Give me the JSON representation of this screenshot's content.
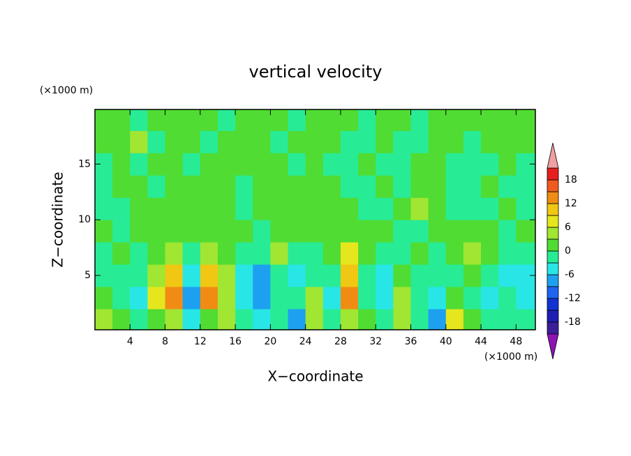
{
  "chart_data": {
    "type": "contour",
    "title": "vertical velocity",
    "x_label": "X−coordinate",
    "y_label": "Z−coordinate",
    "x_units": "(×1000 m)",
    "y_units": "(×1000 m)",
    "xlim": [
      0,
      50.2
    ],
    "ylim": [
      0.12,
      19.9
    ],
    "xticks": [
      4,
      8,
      12,
      16,
      20,
      24,
      28,
      32,
      36,
      40,
      44,
      48
    ],
    "yticks": [
      5,
      10,
      15
    ],
    "x": [
      1,
      3,
      5,
      7,
      9,
      11,
      13,
      15,
      17,
      19,
      21,
      23,
      25,
      27,
      29,
      31,
      33,
      35,
      37,
      39,
      41,
      43,
      45,
      47,
      49
    ],
    "z": [
      1,
      3,
      5,
      7,
      9,
      11,
      13,
      15,
      17,
      19
    ],
    "values": [
      [
        5,
        2,
        -2,
        1,
        3,
        -5,
        2,
        4,
        -3,
        -4,
        -2,
        -9,
        5,
        -2,
        4,
        1,
        -3,
        3,
        -3,
        -7,
        6,
        1,
        -2,
        -1,
        -3
      ],
      [
        2,
        -2,
        -4,
        6,
        13,
        -9,
        12,
        4,
        -5,
        -7,
        -2,
        -3,
        4,
        -4,
        12,
        -3,
        -6,
        3,
        -2,
        -5,
        2,
        -2,
        -4,
        -3,
        -5
      ],
      [
        -2,
        -1,
        -3,
        5,
        10,
        -5,
        9,
        3,
        -4,
        -8,
        -1,
        -4,
        -2,
        -3,
        10,
        -2,
        -5,
        1,
        -2,
        -3,
        -1,
        2,
        -2,
        -4,
        -6
      ],
      [
        -1,
        1,
        -1,
        2,
        3,
        -1,
        4,
        2,
        -1,
        -2,
        5,
        -1,
        -2,
        1,
        6,
        1,
        -2,
        -1,
        1,
        -1,
        2,
        5,
        1,
        -1,
        -2
      ],
      [
        1,
        -1,
        1,
        1,
        2,
        1,
        1,
        2,
        1,
        -1,
        1,
        1,
        2,
        1,
        2,
        1,
        1,
        -1,
        -1,
        1,
        1,
        2,
        1,
        -1,
        1
      ],
      [
        -1,
        -1,
        1,
        1,
        1,
        2,
        1,
        1,
        -1,
        1,
        1,
        2,
        1,
        1,
        1,
        -1,
        -1,
        1,
        4,
        1,
        -1,
        -1,
        -1,
        1,
        -1
      ],
      [
        -1,
        1,
        1,
        -1,
        1,
        1,
        2,
        1,
        -1,
        1,
        1,
        1,
        1,
        1,
        -1,
        -1,
        1,
        -1,
        2,
        1,
        -1,
        -1,
        1,
        -1,
        -1
      ],
      [
        -1,
        1,
        -1,
        1,
        1,
        -1,
        1,
        2,
        1,
        2,
        1,
        -1,
        1,
        -1,
        -1,
        1,
        -1,
        -1,
        1,
        1,
        -1,
        -1,
        -1,
        1,
        -1
      ],
      [
        1,
        1,
        4,
        -1,
        1,
        1,
        -1,
        1,
        1,
        1,
        -1,
        1,
        1,
        1,
        -1,
        -1,
        1,
        -1,
        -1,
        1,
        1,
        -1,
        1,
        1,
        1
      ],
      [
        1,
        1,
        -1,
        1,
        1,
        1,
        1,
        -1,
        1,
        1,
        1,
        -1,
        1,
        1,
        1,
        -1,
        1,
        1,
        -1,
        1,
        1,
        1,
        1,
        1,
        1
      ]
    ],
    "levels": [
      -21,
      -18,
      -15,
      -12,
      -9,
      -6,
      -3,
      0,
      3,
      6,
      9,
      12,
      15,
      18,
      21
    ],
    "colors": [
      "#3c1e9a",
      "#1e1eb4",
      "#1432d2",
      "#1e64f0",
      "#1ea0f0",
      "#28e6e6",
      "#28eb96",
      "#50dc32",
      "#a0e632",
      "#e6e61e",
      "#f0c814",
      "#f08c14",
      "#f05a1e",
      "#e61e1e"
    ],
    "under_color": "#8c14b4",
    "over_color": "#f0a0a0",
    "colorbar_ticks": [
      -18,
      -12,
      -6,
      0,
      6,
      12,
      18
    ]
  }
}
